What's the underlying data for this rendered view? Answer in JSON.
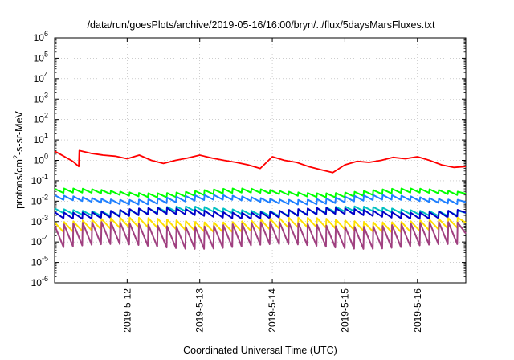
{
  "chart_data": {
    "type": "line",
    "title": "/data/run/goesPlots/archive/2019-05-16/16:00/bryn/../flux/5daysMarsFluxes.txt",
    "xlabel": "Coordinated Universal Time (UTC)",
    "ylabel_parts": {
      "main": "protons/cm",
      "sup": "2",
      "rest": "-s-sr-MeV"
    },
    "yscale": "log",
    "ylim": [
      1e-06,
      1000000.0
    ],
    "xlim": [
      "2019-05-11T00:00",
      "2019-05-16T16:00"
    ],
    "grid": true,
    "legend": "none",
    "x_ticks": [
      "2019-5-12",
      "2019-5-13",
      "2019-5-14",
      "2019-5-15",
      "2019-5-16"
    ],
    "y_ticks": [
      {
        "base": "10",
        "exp": "-6"
      },
      {
        "base": "10",
        "exp": "-5"
      },
      {
        "base": "10",
        "exp": "-4"
      },
      {
        "base": "10",
        "exp": "-3"
      },
      {
        "base": "10",
        "exp": "-2"
      },
      {
        "base": "10",
        "exp": "-1"
      },
      {
        "base": "10",
        "exp": "0"
      },
      {
        "base": "10",
        "exp": "1"
      },
      {
        "base": "10",
        "exp": "2"
      },
      {
        "base": "10",
        "exp": "3"
      },
      {
        "base": "10",
        "exp": "4"
      },
      {
        "base": "10",
        "exp": "5"
      },
      {
        "base": "10",
        "exp": "6"
      }
    ],
    "series": [
      {
        "color": "#ff0000",
        "x": [
          "2019-05-11T00:00",
          "2019-05-11T03:00",
          "2019-05-11T06:00",
          "2019-05-11T08:00",
          "2019-05-11T08:10",
          "2019-05-11T12:00",
          "2019-05-11T16:00",
          "2019-05-11T20:00",
          "2019-05-12T00:00",
          "2019-05-12T04:00",
          "2019-05-12T08:00",
          "2019-05-12T12:00",
          "2019-05-12T16:00",
          "2019-05-12T20:00",
          "2019-05-13T00:00",
          "2019-05-13T04:00",
          "2019-05-13T08:00",
          "2019-05-13T12:00",
          "2019-05-13T16:00",
          "2019-05-13T20:00",
          "2019-05-14T00:00",
          "2019-05-14T04:00",
          "2019-05-14T08:00",
          "2019-05-14T12:00",
          "2019-05-14T16:00",
          "2019-05-14T20:00",
          "2019-05-15T00:00",
          "2019-05-15T04:00",
          "2019-05-15T08:00",
          "2019-05-15T12:00",
          "2019-05-15T16:00",
          "2019-05-15T20:00",
          "2019-05-16T00:00",
          "2019-05-16T04:00",
          "2019-05-16T08:00",
          "2019-05-16T12:00",
          "2019-05-16T16:00"
        ],
        "y": [
          2.8,
          1.6,
          0.9,
          0.5,
          3.0,
          2.2,
          1.8,
          1.6,
          1.2,
          1.8,
          1.0,
          0.7,
          1.0,
          1.3,
          1.8,
          1.3,
          1.0,
          0.8,
          0.6,
          0.4,
          1.5,
          1.0,
          0.8,
          0.5,
          0.35,
          0.25,
          0.6,
          0.9,
          0.8,
          1.0,
          1.4,
          1.2,
          1.5,
          1.0,
          0.6,
          0.45,
          0.5
        ]
      },
      {
        "color": "#00ff00",
        "base": 0.02,
        "amp": 1.6,
        "period_h": 3.1
      },
      {
        "color": "#1e7fff",
        "base": 0.009,
        "amp": 1.7,
        "period_h": 3.1
      },
      {
        "color": "#00c0c0",
        "base": 0.0025,
        "amp": 1.7,
        "period_h": 3.1
      },
      {
        "color": "#0000c8",
        "base": 0.0018,
        "amp": 2.0,
        "period_h": 3.1
      },
      {
        "color": "#ffe000",
        "base": 0.0004,
        "amp": 3.0,
        "period_h": 3.1
      },
      {
        "color": "#a04080",
        "base": 6e-05,
        "amp": 12.0,
        "period_h": 3.1
      }
    ]
  }
}
